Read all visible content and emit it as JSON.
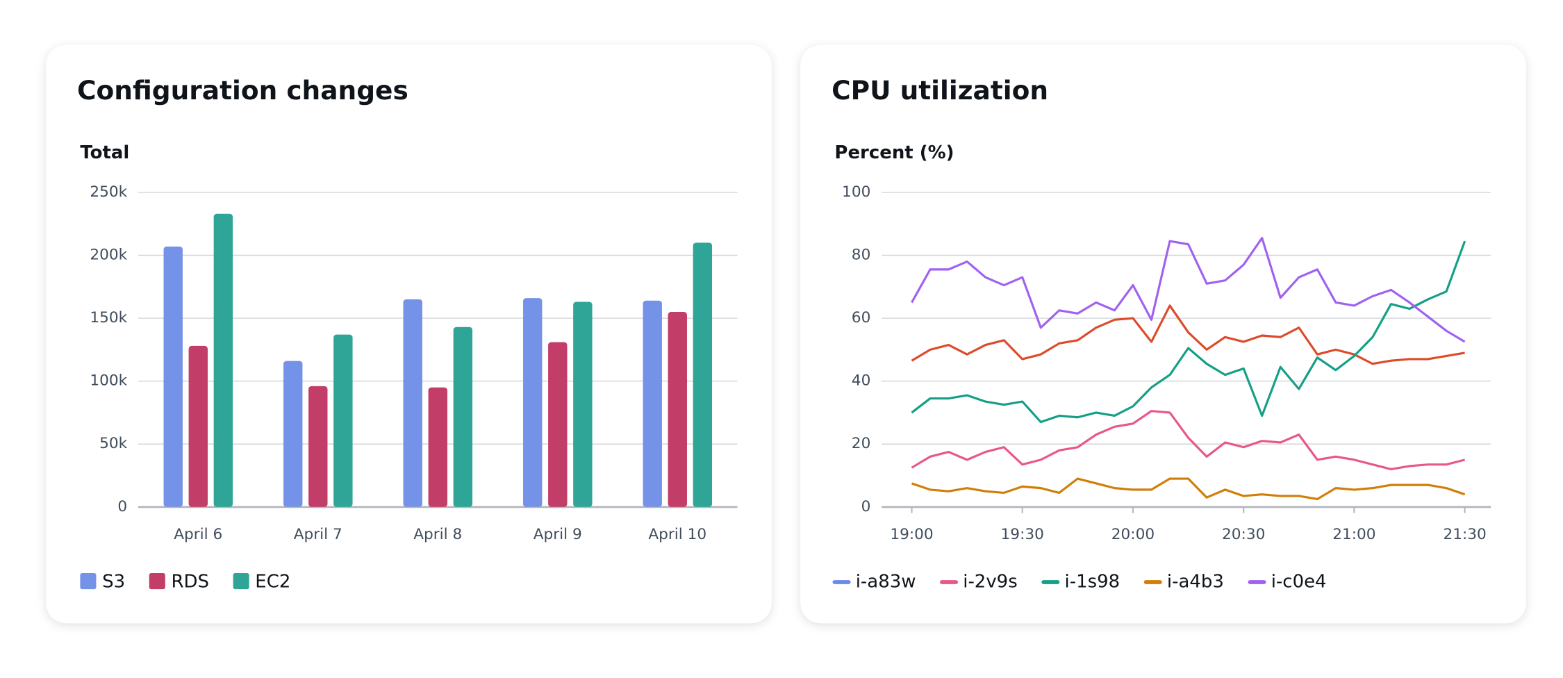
{
  "chart_data": [
    {
      "type": "bar",
      "title": "Configuration changes",
      "y_label": "Total",
      "categories": [
        "April 6",
        "April 7",
        "April 8",
        "April 9",
        "April 10"
      ],
      "series": [
        {
          "name": "S3",
          "color": "#7492e7",
          "values": [
            207000,
            116000,
            165000,
            166000,
            164000
          ]
        },
        {
          "name": "RDS",
          "color": "#c33d69",
          "values": [
            128000,
            96000,
            95000,
            131000,
            155000
          ]
        },
        {
          "name": "EC2",
          "color": "#2ea597",
          "values": [
            233000,
            137000,
            143000,
            163000,
            210000
          ]
        }
      ],
      "ylim": [
        0,
        250000
      ],
      "yticks": [
        0,
        {
          "value": 50000,
          "label": "50k"
        },
        {
          "value": 100000,
          "label": "100k"
        },
        {
          "value": 150000,
          "label": "150k"
        },
        {
          "value": 200000,
          "label": "200k"
        },
        {
          "value": 250000,
          "label": "250k"
        }
      ],
      "grid": true,
      "legend": "bottom-left"
    },
    {
      "type": "line",
      "title": "CPU utilization",
      "y_label": "Percent (%)",
      "x": [
        "19:00",
        "19:05",
        "19:10",
        "19:15",
        "19:20",
        "19:25",
        "19:30",
        "19:35",
        "19:40",
        "19:45",
        "19:50",
        "19:55",
        "20:00",
        "20:05",
        "20:10",
        "20:15",
        "20:20",
        "20:25",
        "20:30",
        "20:35",
        "20:40",
        "20:45",
        "20:50",
        "20:55",
        "21:00",
        "21:05",
        "21:10",
        "21:15",
        "21:20",
        "21:25",
        "21:30"
      ],
      "xticks": [
        "19:00",
        "19:30",
        "20:00",
        "20:30",
        "21:00",
        "21:30"
      ],
      "series": [
        {
          "name": "i-a83w",
          "color": "#dd4b2a",
          "legend_color": "#688ae8",
          "values": [
            46.5,
            50,
            51.5,
            48.5,
            51.5,
            53,
            47,
            48.5,
            52,
            53,
            57,
            59.5,
            60,
            52.5,
            64,
            55.5,
            50,
            54,
            52.5,
            54.5,
            54,
            57,
            48.5,
            50,
            48.5,
            45.5,
            46.5,
            47,
            47,
            48,
            49
          ]
        },
        {
          "name": "i-2v9s",
          "color": "#e8578a",
          "values": [
            12.5,
            16,
            17.5,
            15,
            17.5,
            19,
            13.5,
            15,
            18,
            19,
            23,
            25.5,
            26.5,
            30.5,
            30,
            22,
            16,
            20.5,
            19,
            21,
            20.5,
            23,
            15,
            16,
            15,
            13.5,
            12,
            13,
            13.5,
            13.5,
            15
          ]
        },
        {
          "name": "i-1s98",
          "color": "#159f86",
          "values": [
            30,
            34.5,
            34.5,
            35.5,
            33.5,
            32.5,
            33.5,
            27,
            29,
            28.5,
            30,
            29,
            32,
            38,
            42,
            50.5,
            45.5,
            42,
            44,
            29,
            44.5,
            37.5,
            47.5,
            43.5,
            48,
            54,
            64.5,
            63,
            66,
            68.5,
            84.5
          ]
        },
        {
          "name": "i-a4b3",
          "color": "#d17e08",
          "values": [
            7.5,
            5.5,
            5,
            6,
            5,
            4.5,
            6.5,
            6,
            4.5,
            9,
            7.5,
            6,
            5.5,
            5.5,
            9,
            9,
            3,
            5.5,
            3.5,
            4,
            3.5,
            3.5,
            2.5,
            6,
            5.5,
            6,
            7,
            7,
            7,
            6,
            4
          ]
        },
        {
          "name": "i-c0e4",
          "color": "#9f62f0",
          "values": [
            65,
            75.5,
            75.5,
            78,
            73,
            70.5,
            73,
            57,
            62.5,
            61.5,
            65,
            62.5,
            70.5,
            59.5,
            84.5,
            83.5,
            71,
            72,
            77,
            85.5,
            66.5,
            73,
            75.5,
            65,
            64,
            67,
            69,
            65,
            60.5,
            56,
            52.5
          ]
        }
      ],
      "ylim": [
        0,
        100
      ],
      "yticks": [
        0,
        20,
        40,
        60,
        80,
        100
      ],
      "grid": true,
      "legend": "bottom-left"
    }
  ]
}
